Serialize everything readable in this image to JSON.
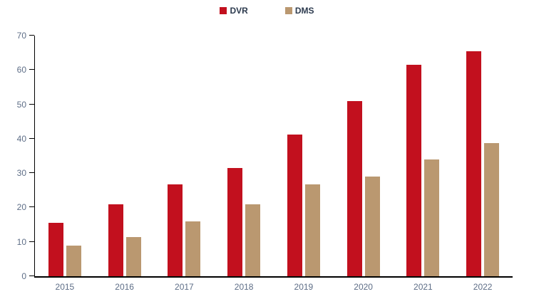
{
  "chart_data": {
    "type": "bar",
    "title": "",
    "xlabel": "",
    "ylabel": "",
    "categories": [
      "2015",
      "2016",
      "2017",
      "2018",
      "2019",
      "2020",
      "2021",
      "2022"
    ],
    "series": [
      {
        "name": "DVR",
        "color": "#C2101E",
        "values": [
          15.5,
          21,
          26.7,
          31.5,
          41.2,
          51,
          61.5,
          65.5
        ]
      },
      {
        "name": "DMS",
        "color": "#BA9870",
        "values": [
          9,
          11.3,
          16,
          21,
          26.7,
          29,
          34,
          38.8
        ]
      }
    ],
    "ylim": [
      0,
      70
    ],
    "ytick_step": 10,
    "ytick_labels": [
      "0",
      "10",
      "20",
      "30",
      "40",
      "50",
      "60",
      "70"
    ],
    "legend_position": "top-center",
    "grid": "off"
  },
  "colors": {
    "dvr_red": "#C2101E",
    "dms_tan": "#BA9870",
    "axis_line": "#000000",
    "tick_label_text": "#5E6E87",
    "legend_text": "#2C3A4E",
    "background": "#FFFFFF"
  }
}
